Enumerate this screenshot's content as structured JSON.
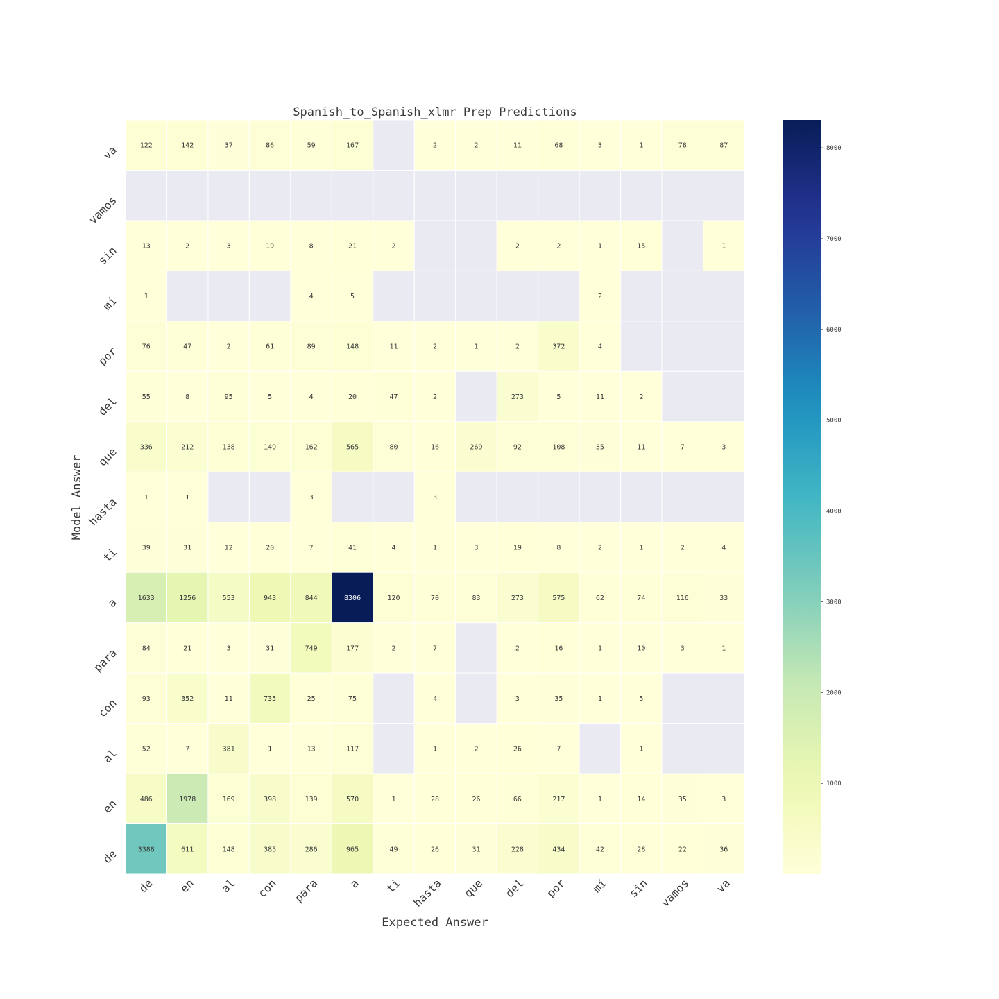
{
  "chart_data": {
    "type": "heatmap",
    "title": "Spanish_to_Spanish_xlmr Prep Predictions",
    "xlabel": "Expected Answer",
    "ylabel": "Model Answer",
    "x_categories": [
      "de",
      "en",
      "al",
      "con",
      "para",
      "a",
      "ti",
      "hasta",
      "que",
      "del",
      "por",
      "mí",
      "sin",
      "vamos",
      "va"
    ],
    "y_categories": [
      "va",
      "vamos",
      "sin",
      "mí",
      "por",
      "del",
      "que",
      "hasta",
      "ti",
      "a",
      "para",
      "con",
      "al",
      "en",
      "de"
    ],
    "values": [
      [
        122,
        142,
        37,
        86,
        59,
        167,
        null,
        2,
        2,
        11,
        68,
        3,
        1,
        78,
        87
      ],
      [
        null,
        null,
        null,
        null,
        null,
        null,
        null,
        null,
        null,
        null,
        null,
        null,
        null,
        null,
        null
      ],
      [
        13,
        2,
        3,
        19,
        8,
        21,
        2,
        null,
        null,
        2,
        2,
        1,
        15,
        null,
        1
      ],
      [
        1,
        null,
        null,
        null,
        4,
        5,
        null,
        null,
        null,
        null,
        null,
        2,
        null,
        null,
        null
      ],
      [
        76,
        47,
        2,
        61,
        89,
        148,
        11,
        2,
        1,
        2,
        372,
        4,
        null,
        null,
        null
      ],
      [
        55,
        8,
        95,
        5,
        4,
        20,
        47,
        2,
        null,
        273,
        5,
        11,
        2,
        null,
        null
      ],
      [
        336,
        212,
        138,
        149,
        162,
        565,
        80,
        16,
        269,
        92,
        108,
        35,
        11,
        7,
        3
      ],
      [
        1,
        1,
        null,
        null,
        3,
        null,
        null,
        3,
        null,
        null,
        null,
        null,
        null,
        null,
        null
      ],
      [
        39,
        31,
        12,
        20,
        7,
        41,
        4,
        1,
        3,
        19,
        8,
        2,
        1,
        2,
        4
      ],
      [
        1633,
        1256,
        553,
        943,
        844,
        8306,
        120,
        70,
        83,
        273,
        575,
        62,
        74,
        116,
        33
      ],
      [
        84,
        21,
        3,
        31,
        749,
        177,
        2,
        7,
        null,
        2,
        16,
        1,
        10,
        3,
        1
      ],
      [
        93,
        352,
        11,
        735,
        25,
        75,
        null,
        4,
        null,
        3,
        35,
        1,
        5,
        null,
        null
      ],
      [
        52,
        7,
        381,
        1,
        13,
        117,
        null,
        1,
        2,
        26,
        7,
        null,
        1,
        null,
        null
      ],
      [
        486,
        1978,
        169,
        398,
        139,
        570,
        1,
        28,
        26,
        66,
        217,
        1,
        14,
        35,
        3
      ],
      [
        3388,
        611,
        148,
        385,
        286,
        965,
        49,
        26,
        31,
        228,
        434,
        42,
        28,
        22,
        36
      ]
    ],
    "colormap": "YlGnBu",
    "missing_color": "#eaeaf2",
    "value_range": [
      1,
      8306
    ],
    "colorbar_ticks": [
      "1000",
      "2000",
      "3000",
      "4000",
      "5000",
      "6000",
      "7000",
      "8000"
    ],
    "colorbar_tick_values": [
      1000,
      2000,
      3000,
      4000,
      5000,
      6000,
      7000,
      8000
    ],
    "grid": false
  }
}
